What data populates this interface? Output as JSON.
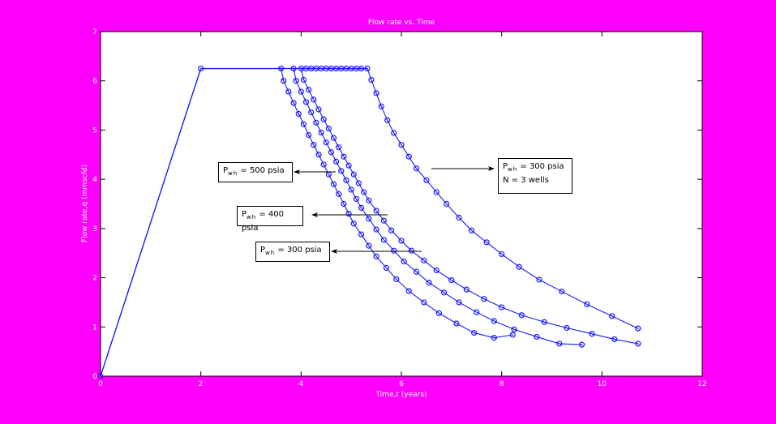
{
  "chart_data": {
    "type": "line",
    "title": "Flow rate vs. Time",
    "xlabel": "Time,t (years)",
    "ylabel": "Flow rate,q (mmscfd)",
    "xlim": [
      0,
      12
    ],
    "ylim": [
      0,
      7
    ],
    "xticks": [
      0,
      2,
      4,
      6,
      8,
      10,
      12
    ],
    "yticks": [
      0,
      1,
      2,
      3,
      4,
      5,
      6,
      7
    ],
    "grid": false,
    "line_color": "#1a1aff",
    "marker": "circle",
    "plateau_rate": 6.25,
    "buildup": {
      "x": [
        0,
        2
      ],
      "y": [
        0,
        6.25
      ]
    },
    "series": [
      {
        "name": "Pwh = 300 psia",
        "x": [
          2.0,
          3.6,
          3.65,
          3.75,
          3.85,
          3.95,
          4.05,
          4.15,
          4.25,
          4.35,
          4.45,
          4.55,
          4.65,
          4.75,
          4.85,
          4.95,
          5.05,
          5.2,
          5.35,
          5.5,
          5.7,
          5.9,
          6.15,
          6.45,
          6.75,
          7.1,
          7.45,
          7.85,
          8.22
        ],
        "y": [
          6.25,
          6.25,
          6.0,
          5.78,
          5.55,
          5.33,
          5.12,
          4.9,
          4.7,
          4.5,
          4.3,
          4.1,
          3.9,
          3.7,
          3.5,
          3.3,
          3.1,
          2.88,
          2.65,
          2.43,
          2.2,
          1.97,
          1.73,
          1.5,
          1.28,
          1.07,
          0.88,
          0.78,
          0.84
        ]
      },
      {
        "name": "Pwh = 400 psia",
        "x": [
          3.85,
          3.9,
          4.0,
          4.1,
          4.2,
          4.3,
          4.4,
          4.5,
          4.6,
          4.7,
          4.8,
          4.9,
          5.0,
          5.1,
          5.2,
          5.35,
          5.5,
          5.65,
          5.85,
          6.05,
          6.3,
          6.55,
          6.85,
          7.15,
          7.5,
          7.85,
          8.25,
          8.7,
          9.15,
          9.6
        ],
        "y": [
          6.25,
          6.0,
          5.78,
          5.57,
          5.36,
          5.15,
          4.95,
          4.75,
          4.55,
          4.36,
          4.17,
          3.98,
          3.79,
          3.6,
          3.42,
          3.2,
          2.98,
          2.77,
          2.55,
          2.33,
          2.12,
          1.9,
          1.7,
          1.5,
          1.3,
          1.12,
          0.95,
          0.8,
          0.66,
          0.64
        ]
      },
      {
        "name": "Pwh = 500 psia",
        "x": [
          4.0,
          4.05,
          4.15,
          4.25,
          4.35,
          4.45,
          4.55,
          4.65,
          4.75,
          4.85,
          4.95,
          5.05,
          5.15,
          5.25,
          5.35,
          5.5,
          5.65,
          5.8,
          6.0,
          6.2,
          6.45,
          6.7,
          7.0,
          7.3,
          7.65,
          8.0,
          8.4,
          8.85,
          9.3,
          9.8,
          10.25,
          10.72
        ],
        "y": [
          6.25,
          6.02,
          5.82,
          5.62,
          5.42,
          5.22,
          5.03,
          4.84,
          4.65,
          4.46,
          4.28,
          4.1,
          3.92,
          3.74,
          3.57,
          3.36,
          3.16,
          2.96,
          2.75,
          2.55,
          2.35,
          2.15,
          1.95,
          1.76,
          1.57,
          1.4,
          1.24,
          1.1,
          0.98,
          0.86,
          0.75,
          0.66
        ]
      },
      {
        "name": "Pwh = 300 psia, N = 3 wells",
        "x": [
          4.1,
          4.2,
          4.3,
          4.4,
          4.5,
          4.6,
          4.7,
          4.8,
          4.9,
          5.0,
          5.1,
          5.2,
          5.32,
          5.4,
          5.5,
          5.6,
          5.72,
          5.85,
          6.0,
          6.15,
          6.3,
          6.5,
          6.7,
          6.9,
          7.15,
          7.4,
          7.7,
          8.0,
          8.35,
          8.75,
          9.2,
          9.7,
          10.2,
          10.72
        ],
        "y": [
          6.25,
          6.25,
          6.25,
          6.25,
          6.25,
          6.25,
          6.25,
          6.25,
          6.25,
          6.25,
          6.25,
          6.25,
          6.25,
          6.02,
          5.75,
          5.48,
          5.2,
          4.94,
          4.7,
          4.46,
          4.22,
          3.98,
          3.74,
          3.5,
          3.22,
          2.96,
          2.72,
          2.48,
          2.22,
          1.96,
          1.72,
          1.46,
          1.22,
          0.97
        ]
      }
    ],
    "annotations": [
      {
        "label_main": "P",
        "label_sub": "wh",
        "label_rest": " = 500 psia",
        "line2": ""
      },
      {
        "label_main": "P",
        "label_sub": "wh",
        "label_rest": " = 400 psia",
        "line2": ""
      },
      {
        "label_main": "P",
        "label_sub": "wh",
        "label_rest": " = 300 psia",
        "line2": ""
      },
      {
        "label_main": "P",
        "label_sub": "wh",
        "label_rest": " = 300 psia",
        "line2": "N = 3 wells"
      }
    ]
  }
}
